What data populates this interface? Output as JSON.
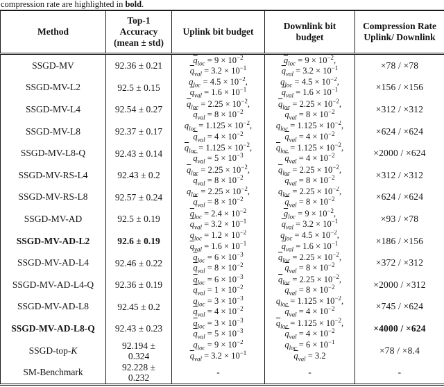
{
  "caption": {
    "prefix": "compression rate are highlighted in ",
    "bold_word": "bold",
    "suffix": "."
  },
  "header": {
    "method": "Method",
    "accuracy": "Top-1\nAccuracy\n(mean ± std)",
    "uplink": "Uplink bit budget",
    "downlink": "Downlink bit\nbudget",
    "compression": "Compression Rate\nUplink/ Downlink"
  },
  "rows": [
    {
      "method": "SSGD-MV",
      "method_italic": "",
      "method_bold": false,
      "accuracy": "92.36 ± 0.21",
      "accuracy_bold": false,
      "uplink": [
        {
          "s": "loc",
          "v": "9 × 10",
          "e": "−2",
          "c": false
        },
        {
          "s": "val",
          "v": "3.2 × 10",
          "e": "−1",
          "c": false
        }
      ],
      "downlink": [
        {
          "s": "loc",
          "v": "9 × 10",
          "e": "−2",
          "c": true
        },
        {
          "s": "val",
          "v": "3.2 × 10",
          "e": "−1",
          "c": false
        }
      ],
      "compression": "×78 / ×78",
      "compression_bold": false
    },
    {
      "method": "SSGD-MV-L2",
      "method_italic": "",
      "method_bold": false,
      "accuracy": "92.5 ± 0.15",
      "accuracy_bold": false,
      "uplink": [
        {
          "s": "loc",
          "v": "4.5 × 10",
          "e": "−2",
          "c": true
        },
        {
          "s": "val",
          "v": "1.6 × 10",
          "e": "−1",
          "c": false
        }
      ],
      "downlink": [
        {
          "s": "loc",
          "v": "4.5 × 10",
          "e": "−2",
          "c": true
        },
        {
          "s": "val",
          "v": "1.6 × 10",
          "e": "−1",
          "c": false
        }
      ],
      "compression": "×156 / ×156",
      "compression_bold": false
    },
    {
      "method": "SSGD-MV-L4",
      "method_italic": "",
      "method_bold": false,
      "accuracy": "92.54 ± 0.27",
      "accuracy_bold": false,
      "uplink": [
        {
          "s": "loc",
          "v": "2.25 × 10",
          "e": "−2",
          "c": true
        },
        {
          "s": "val",
          "v": "8 × 10",
          "e": "−2",
          "c": false
        }
      ],
      "downlink": [
        {
          "s": "loc",
          "v": "2.25 × 10",
          "e": "−2",
          "c": true
        },
        {
          "s": "val",
          "v": "8 × 10",
          "e": "−2",
          "c": false
        }
      ],
      "compression": "×312 / ×312",
      "compression_bold": false
    },
    {
      "method": "SSGD-MV-L8",
      "method_italic": "",
      "method_bold": false,
      "accuracy": "92.37 ± 0.17",
      "accuracy_bold": false,
      "uplink": [
        {
          "s": "loc",
          "v": "1.125 × 10",
          "e": "−2",
          "c": true
        },
        {
          "s": "val",
          "v": "4 × 10",
          "e": "−2",
          "c": false
        }
      ],
      "downlink": [
        {
          "s": "loc",
          "v": "1.125 × 10",
          "e": "−2",
          "c": true
        },
        {
          "s": "val",
          "v": "4 × 10",
          "e": "−2",
          "c": false
        }
      ],
      "compression": "×624 / ×624",
      "compression_bold": false
    },
    {
      "method": "SSGD-MV-L8-Q",
      "method_italic": "",
      "method_bold": false,
      "accuracy": "92.43 ± 0.14",
      "accuracy_bold": false,
      "uplink": [
        {
          "s": "loc",
          "v": "1.125 × 10",
          "e": "−2",
          "c": true
        },
        {
          "s": "val",
          "v": "5 × 10",
          "e": "−3",
          "c": false
        }
      ],
      "downlink": [
        {
          "s": "loc",
          "v": "1.125 × 10",
          "e": "−2",
          "c": true
        },
        {
          "s": "val",
          "v": "4 × 10",
          "e": "−2",
          "c": false
        }
      ],
      "compression": "×2000 / ×624",
      "compression_bold": false
    },
    {
      "method": "SSGD-MV-RS-L4",
      "method_italic": "",
      "method_bold": false,
      "accuracy": "92.43 ± 0.2",
      "accuracy_bold": false,
      "uplink": [
        {
          "s": "loc",
          "v": "2.25 × 10",
          "e": "−2",
          "c": true
        },
        {
          "s": "val",
          "v": "8 × 10",
          "e": "−2",
          "c": false
        }
      ],
      "downlink": [
        {
          "s": "loc",
          "v": "2.25 × 10",
          "e": "−2",
          "c": true
        },
        {
          "s": "val",
          "v": "8 × 10",
          "e": "−2",
          "c": false
        }
      ],
      "compression": "×312 / ×312",
      "compression_bold": false
    },
    {
      "method": "SSGD-MV-RS-L8",
      "method_italic": "",
      "method_bold": false,
      "accuracy": "92.57 ± 0.24",
      "accuracy_bold": false,
      "uplink": [
        {
          "s": "loc",
          "v": "2.25 × 10",
          "e": "−2",
          "c": true
        },
        {
          "s": "val",
          "v": "8 × 10",
          "e": "−2",
          "c": false
        }
      ],
      "downlink": [
        {
          "s": "loc",
          "v": "2.25 × 10",
          "e": "−2",
          "c": true
        },
        {
          "s": "val",
          "v": "8 × 10",
          "e": "−2",
          "c": false
        }
      ],
      "compression": "×624 / ×624",
      "compression_bold": false
    },
    {
      "method": "SSGD-MV-AD",
      "method_italic": "",
      "method_bold": false,
      "accuracy": "92.5 ± 0.19",
      "accuracy_bold": false,
      "uplink": [
        {
          "s": "loc",
          "v": "2.4 × 10",
          "e": "−2",
          "c": false
        },
        {
          "s": "val",
          "v": "3.2 × 10",
          "e": "−1",
          "c": false
        }
      ],
      "downlink": [
        {
          "s": "loc",
          "v": "9 × 10",
          "e": "−2",
          "c": true
        },
        {
          "s": "val",
          "v": "3.2 × 10",
          "e": "−1",
          "c": false
        }
      ],
      "compression": "×93 / ×78",
      "compression_bold": false
    },
    {
      "method": "SSGD-MV-AD-L2",
      "method_italic": "",
      "method_bold": true,
      "accuracy": "92.6 ± 0.19",
      "accuracy_bold": true,
      "uplink": [
        {
          "s": "loc",
          "v": "1.2 × 10",
          "e": "−2",
          "c": false
        },
        {
          "s": "val",
          "v": "1.6 × 10",
          "e": "−1",
          "c": false
        }
      ],
      "downlink": [
        {
          "s": "loc",
          "v": "4.5 × 10",
          "e": "−2",
          "c": true
        },
        {
          "s": "val",
          "v": "1.6 × 10",
          "e": "−1",
          "c": false
        }
      ],
      "compression": "×186 / ×156",
      "compression_bold": false
    },
    {
      "method": "SSGD-MV-AD-L4",
      "method_italic": "",
      "method_bold": false,
      "accuracy": "92.46 ± 0.22",
      "accuracy_bold": false,
      "uplink": [
        {
          "s": "loc",
          "v": "6 × 10",
          "e": "−3",
          "c": false
        },
        {
          "s": "val",
          "v": "8 × 10",
          "e": "−2",
          "c": false
        }
      ],
      "downlink": [
        {
          "s": "loc",
          "v": "2.25 × 10",
          "e": "−2",
          "c": true
        },
        {
          "s": "val",
          "v": "8 × 10",
          "e": "−2",
          "c": false
        }
      ],
      "compression": "×372 / ×312",
      "compression_bold": false
    },
    {
      "method": "SSGD-MV-AD-L4-Q",
      "method_italic": "",
      "method_bold": false,
      "accuracy": "92.36 ± 0.19",
      "accuracy_bold": false,
      "uplink": [
        {
          "s": "loc",
          "v": "6 × 10",
          "e": "−3",
          "c": false
        },
        {
          "s": "val",
          "v": "1 × 10",
          "e": "−2",
          "c": false
        }
      ],
      "downlink": [
        {
          "s": "loc",
          "v": "2.25 × 10",
          "e": "−2",
          "c": true
        },
        {
          "s": "val",
          "v": "8 × 10",
          "e": "−2",
          "c": false
        }
      ],
      "compression": "×2000 / ×312",
      "compression_bold": false
    },
    {
      "method": "SSGD-MV-AD-L8",
      "method_italic": "",
      "method_bold": false,
      "accuracy": "92.45 ± 0.2",
      "accuracy_bold": false,
      "uplink": [
        {
          "s": "loc",
          "v": "3 × 10",
          "e": "−3",
          "c": false
        },
        {
          "s": "val",
          "v": "4 × 10",
          "e": "−2",
          "c": false
        }
      ],
      "downlink": [
        {
          "s": "loc",
          "v": "1.125 × 10",
          "e": "−2",
          "c": true
        },
        {
          "s": "val",
          "v": "4 × 10",
          "e": "−2",
          "c": false
        }
      ],
      "compression": "×745 / ×624",
      "compression_bold": false
    },
    {
      "method": "SSGD-MV-AD-L8-Q",
      "method_italic": "",
      "method_bold": true,
      "accuracy": "92.43 ± 0.23",
      "accuracy_bold": false,
      "uplink": [
        {
          "s": "loc",
          "v": "3 × 10",
          "e": "−3",
          "c": false
        },
        {
          "s": "val",
          "v": "5 × 10",
          "e": "−3",
          "c": false
        }
      ],
      "downlink": [
        {
          "s": "loc",
          "v": "1.125 × 10",
          "e": "−2",
          "c": true
        },
        {
          "s": "val",
          "v": "4 × 10",
          "e": "−2",
          "c": false
        }
      ],
      "compression": "×4000 / ×624",
      "compression_bold": true
    },
    {
      "method": "SSGD-top-",
      "method_italic": "K",
      "method_bold": false,
      "accuracy": "92.194 ±\n0.324",
      "accuracy_bold": false,
      "uplink": [
        {
          "s": "loc",
          "v": "9 × 10",
          "e": "−2",
          "c": false
        },
        {
          "s": "val",
          "v": "3.2 × 10",
          "e": "−1",
          "c": false
        }
      ],
      "downlink": [
        {
          "s": "loc",
          "v": "6 × 10",
          "e": "−1",
          "c": false
        },
        {
          "s": "val",
          "v": "3.2",
          "e": "",
          "c": false
        }
      ],
      "compression": "×78 / ×8.4",
      "compression_bold": false
    },
    {
      "method": "SM-Benchmark",
      "method_italic": "",
      "method_bold": false,
      "accuracy": "92.228 ±\n0.232",
      "accuracy_bold": false,
      "uplink": "-",
      "downlink": "-",
      "compression": "-",
      "compression_bold": false
    }
  ]
}
